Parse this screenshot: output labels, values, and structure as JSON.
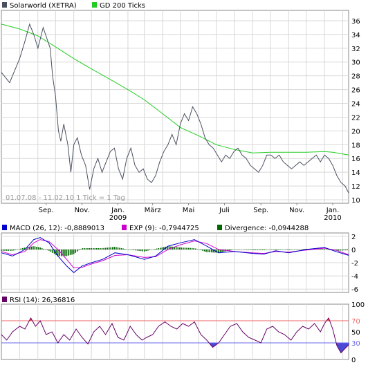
{
  "colors": {
    "price": "#4a5060",
    "gd200": "#22cc22",
    "macd": "#0000cc",
    "exp": "#cc00cc",
    "divergence": "#006600",
    "rsi": "#660066",
    "rsi_high_fill": "#ff3b3b",
    "rsi_low_fill": "#4b4bd6",
    "rsi_70_line": "#ee6666",
    "rsi_30_line": "#6666ee",
    "grid": "#d8d8d8",
    "panel_bg": "#ffffff"
  },
  "legend": {
    "price_label": "Solarworld (XETRA)",
    "gd200_label": "GD 200 Ticks",
    "macd_label": "MACD (26, 12): -0,8889013",
    "exp_label": "EXP (9): -0,7944725",
    "divergence_label": "Divergence: -0,0944288",
    "rsi_label": "RSI (14): 26,36816"
  },
  "footnote": "01.07.08 - 11.02.10   1 Tick = 1 Tag",
  "x_ticks": [
    {
      "label": "Sep.",
      "year": ""
    },
    {
      "label": "Nov.",
      "year": ""
    },
    {
      "label": "Jan.",
      "year": "2009"
    },
    {
      "label": "März",
      "year": ""
    },
    {
      "label": "Mai",
      "year": ""
    },
    {
      "label": "Juli",
      "year": ""
    },
    {
      "label": "Sep.",
      "year": ""
    },
    {
      "label": "Nov.",
      "year": ""
    },
    {
      "label": "Jan.",
      "year": "2010"
    }
  ],
  "chart_data": [
    {
      "type": "line",
      "title": "",
      "x_range": [
        "2008-07-01",
        "2010-02-11"
      ],
      "y_ticks": [
        "10",
        "12",
        "14",
        "16",
        "18",
        "20",
        "22",
        "24",
        "26",
        "28",
        "30",
        "32",
        "34",
        "36"
      ],
      "ylim": [
        9.5,
        37.5
      ],
      "grid": true,
      "legend_position": "top-left",
      "series": [
        {
          "name": "Solarworld (XETRA)",
          "points": [
            [
              "2008-07-01",
              28.5
            ],
            [
              "2008-07-15",
              27.0
            ],
            [
              "2008-08-01",
              30.5
            ],
            [
              "2008-08-10",
              33.0
            ],
            [
              "2008-08-18",
              35.5
            ],
            [
              "2008-08-25",
              34.0
            ],
            [
              "2008-09-01",
              32.0
            ],
            [
              "2008-09-10",
              35.0
            ],
            [
              "2008-09-16",
              33.5
            ],
            [
              "2008-09-22",
              32.0
            ],
            [
              "2008-09-26",
              28.0
            ],
            [
              "2008-10-01",
              25.0
            ],
            [
              "2008-10-06",
              20.0
            ],
            [
              "2008-10-10",
              18.5
            ],
            [
              "2008-10-15",
              21.0
            ],
            [
              "2008-10-22",
              18.0
            ],
            [
              "2008-10-27",
              14.0
            ],
            [
              "2008-11-01",
              18.0
            ],
            [
              "2008-11-07",
              19.0
            ],
            [
              "2008-11-14",
              16.5
            ],
            [
              "2008-11-21",
              15.0
            ],
            [
              "2008-11-28",
              11.5
            ],
            [
              "2008-12-05",
              14.5
            ],
            [
              "2008-12-12",
              16.0
            ],
            [
              "2008-12-19",
              14.0
            ],
            [
              "2009-01-02",
              17.0
            ],
            [
              "2009-01-09",
              17.5
            ],
            [
              "2009-01-16",
              14.5
            ],
            [
              "2009-01-23",
              13.0
            ],
            [
              "2009-01-30",
              16.0
            ],
            [
              "2009-02-06",
              17.5
            ],
            [
              "2009-02-13",
              15.0
            ],
            [
              "2009-02-20",
              14.0
            ],
            [
              "2009-02-27",
              14.5
            ],
            [
              "2009-03-06",
              13.0
            ],
            [
              "2009-03-13",
              12.5
            ],
            [
              "2009-03-20",
              13.5
            ],
            [
              "2009-03-27",
              15.5
            ],
            [
              "2009-04-03",
              17.0
            ],
            [
              "2009-04-10",
              18.0
            ],
            [
              "2009-04-17",
              19.5
            ],
            [
              "2009-04-24",
              18.0
            ],
            [
              "2009-05-01",
              21.0
            ],
            [
              "2009-05-08",
              22.5
            ],
            [
              "2009-05-15",
              21.5
            ],
            [
              "2009-05-22",
              23.5
            ],
            [
              "2009-05-29",
              22.5
            ],
            [
              "2009-06-05",
              21.0
            ],
            [
              "2009-06-12",
              19.0
            ],
            [
              "2009-06-19",
              18.0
            ],
            [
              "2009-06-26",
              17.5
            ],
            [
              "2009-07-03",
              16.5
            ],
            [
              "2009-07-10",
              15.5
            ],
            [
              "2009-07-17",
              16.5
            ],
            [
              "2009-07-24",
              16.0
            ],
            [
              "2009-07-31",
              17.0
            ],
            [
              "2009-08-07",
              17.5
            ],
            [
              "2009-08-14",
              16.5
            ],
            [
              "2009-08-21",
              16.0
            ],
            [
              "2009-08-28",
              15.0
            ],
            [
              "2009-09-04",
              14.5
            ],
            [
              "2009-09-11",
              14.0
            ],
            [
              "2009-09-18",
              15.0
            ],
            [
              "2009-09-25",
              16.5
            ],
            [
              "2009-10-02",
              16.5
            ],
            [
              "2009-10-09",
              16.0
            ],
            [
              "2009-10-16",
              16.5
            ],
            [
              "2009-10-23",
              15.5
            ],
            [
              "2009-10-30",
              15.0
            ],
            [
              "2009-11-06",
              14.5
            ],
            [
              "2009-11-13",
              15.0
            ],
            [
              "2009-11-20",
              15.5
            ],
            [
              "2009-11-27",
              15.0
            ],
            [
              "2009-12-04",
              15.5
            ],
            [
              "2009-12-11",
              16.0
            ],
            [
              "2009-12-18",
              16.5
            ],
            [
              "2009-12-25",
              15.5
            ],
            [
              "2010-01-01",
              16.5
            ],
            [
              "2010-01-08",
              16.0
            ],
            [
              "2010-01-15",
              15.0
            ],
            [
              "2010-01-22",
              13.5
            ],
            [
              "2010-01-29",
              12.5
            ],
            [
              "2010-02-05",
              12.0
            ],
            [
              "2010-02-11",
              11.0
            ]
          ]
        },
        {
          "name": "GD 200 Ticks",
          "points": [
            [
              "2008-07-01",
              35.5
            ],
            [
              "2008-08-01",
              34.8
            ],
            [
              "2008-09-01",
              33.8
            ],
            [
              "2008-10-01",
              32.2
            ],
            [
              "2008-11-01",
              30.5
            ],
            [
              "2008-12-01",
              29.0
            ],
            [
              "2009-01-01",
              27.5
            ],
            [
              "2009-02-01",
              26.0
            ],
            [
              "2009-03-01",
              24.5
            ],
            [
              "2009-04-01",
              22.5
            ],
            [
              "2009-05-01",
              20.5
            ],
            [
              "2009-06-01",
              19.3
            ],
            [
              "2009-07-01",
              18.0
            ],
            [
              "2009-08-01",
              17.3
            ],
            [
              "2009-09-01",
              16.8
            ],
            [
              "2009-10-01",
              16.9
            ],
            [
              "2009-11-01",
              16.9
            ],
            [
              "2009-12-01",
              16.9
            ],
            [
              "2010-01-01",
              17.0
            ],
            [
              "2010-01-15",
              16.9
            ],
            [
              "2010-02-11",
              16.5
            ]
          ]
        }
      ]
    },
    {
      "type": "line",
      "title": "",
      "y_ticks": [
        "2",
        "0",
        "-2",
        "-4",
        "-6"
      ],
      "ylim": [
        -6.5,
        2.5
      ],
      "grid": true,
      "series": [
        {
          "name": "MACD",
          "points": [
            [
              "2008-07-01",
              -0.5
            ],
            [
              "2008-07-20",
              -1.0
            ],
            [
              "2008-08-10",
              0.0
            ],
            [
              "2008-08-25",
              1.5
            ],
            [
              "2008-09-05",
              1.8
            ],
            [
              "2008-09-20",
              1.0
            ],
            [
              "2008-10-05",
              -1.0
            ],
            [
              "2008-10-20",
              -2.5
            ],
            [
              "2008-11-01",
              -3.5
            ],
            [
              "2008-11-15",
              -2.5
            ],
            [
              "2008-12-01",
              -2.0
            ],
            [
              "2008-12-20",
              -1.5
            ],
            [
              "2009-01-10",
              -0.5
            ],
            [
              "2009-02-01",
              -0.8
            ],
            [
              "2009-03-01",
              -1.5
            ],
            [
              "2009-03-20",
              -1.0
            ],
            [
              "2009-04-10",
              0.5
            ],
            [
              "2009-05-01",
              1.0
            ],
            [
              "2009-05-25",
              1.5
            ],
            [
              "2009-06-15",
              0.5
            ],
            [
              "2009-07-05",
              -0.5
            ],
            [
              "2009-08-01",
              -0.3
            ],
            [
              "2009-09-01",
              -0.6
            ],
            [
              "2009-09-20",
              -0.7
            ],
            [
              "2009-10-10",
              -0.2
            ],
            [
              "2009-11-01",
              -0.5
            ],
            [
              "2009-12-01",
              0.0
            ],
            [
              "2010-01-01",
              0.3
            ],
            [
              "2010-01-20",
              -0.3
            ],
            [
              "2010-02-11",
              -0.89
            ]
          ]
        },
        {
          "name": "EXP (9)",
          "points": [
            [
              "2008-07-01",
              -0.3
            ],
            [
              "2008-07-20",
              -0.8
            ],
            [
              "2008-08-10",
              -0.3
            ],
            [
              "2008-08-25",
              1.0
            ],
            [
              "2008-09-05",
              1.5
            ],
            [
              "2008-09-20",
              1.2
            ],
            [
              "2008-10-05",
              0.0
            ],
            [
              "2008-10-20",
              -1.5
            ],
            [
              "2008-11-01",
              -2.8
            ],
            [
              "2008-11-15",
              -2.7
            ],
            [
              "2008-12-01",
              -2.2
            ],
            [
              "2008-12-20",
              -1.7
            ],
            [
              "2009-01-10",
              -0.9
            ],
            [
              "2009-02-01",
              -0.8
            ],
            [
              "2009-03-01",
              -1.2
            ],
            [
              "2009-03-20",
              -1.1
            ],
            [
              "2009-04-10",
              0.0
            ],
            [
              "2009-05-01",
              0.7
            ],
            [
              "2009-05-25",
              1.3
            ],
            [
              "2009-06-15",
              0.9
            ],
            [
              "2009-07-05",
              0.0
            ],
            [
              "2009-08-01",
              -0.3
            ],
            [
              "2009-09-01",
              -0.5
            ],
            [
              "2009-09-20",
              -0.6
            ],
            [
              "2009-10-10",
              -0.3
            ],
            [
              "2009-11-01",
              -0.4
            ],
            [
              "2009-12-01",
              -0.1
            ],
            [
              "2010-01-01",
              0.2
            ],
            [
              "2010-01-20",
              -0.1
            ],
            [
              "2010-02-11",
              -0.79
            ]
          ]
        }
      ]
    },
    {
      "type": "line",
      "title": "",
      "y_ticks": [
        "100",
        "70",
        "50",
        "30",
        "0"
      ],
      "ylim": [
        0,
        100
      ],
      "grid": true,
      "reference_lines": [
        70,
        30
      ],
      "series": [
        {
          "name": "RSI (14)",
          "points": [
            [
              "2008-07-01",
              45
            ],
            [
              "2008-07-10",
              35
            ],
            [
              "2008-07-20",
              50
            ],
            [
              "2008-08-01",
              60
            ],
            [
              "2008-08-10",
              55
            ],
            [
              "2008-08-20",
              75
            ],
            [
              "2008-08-28",
              60
            ],
            [
              "2008-09-05",
              70
            ],
            [
              "2008-09-15",
              45
            ],
            [
              "2008-09-25",
              50
            ],
            [
              "2008-10-05",
              30
            ],
            [
              "2008-10-15",
              45
            ],
            [
              "2008-10-25",
              35
            ],
            [
              "2008-11-05",
              55
            ],
            [
              "2008-11-15",
              40
            ],
            [
              "2008-11-25",
              28
            ],
            [
              "2008-12-05",
              50
            ],
            [
              "2008-12-15",
              60
            ],
            [
              "2008-12-25",
              45
            ],
            [
              "2009-01-05",
              65
            ],
            [
              "2009-01-15",
              40
            ],
            [
              "2009-01-25",
              35
            ],
            [
              "2009-02-05",
              60
            ],
            [
              "2009-02-15",
              45
            ],
            [
              "2009-02-25",
              35
            ],
            [
              "2009-03-05",
              40
            ],
            [
              "2009-03-15",
              45
            ],
            [
              "2009-03-25",
              60
            ],
            [
              "2009-04-05",
              68
            ],
            [
              "2009-04-15",
              60
            ],
            [
              "2009-04-25",
              55
            ],
            [
              "2009-05-05",
              65
            ],
            [
              "2009-05-15",
              60
            ],
            [
              "2009-05-25",
              68
            ],
            [
              "2009-06-05",
              45
            ],
            [
              "2009-06-15",
              35
            ],
            [
              "2009-06-25",
              22
            ],
            [
              "2009-07-05",
              30
            ],
            [
              "2009-07-15",
              45
            ],
            [
              "2009-07-25",
              60
            ],
            [
              "2009-08-05",
              65
            ],
            [
              "2009-08-15",
              50
            ],
            [
              "2009-08-25",
              40
            ],
            [
              "2009-09-05",
              35
            ],
            [
              "2009-09-15",
              30
            ],
            [
              "2009-09-25",
              55
            ],
            [
              "2009-10-05",
              60
            ],
            [
              "2009-10-15",
              50
            ],
            [
              "2009-10-25",
              45
            ],
            [
              "2009-11-05",
              35
            ],
            [
              "2009-11-15",
              50
            ],
            [
              "2009-11-25",
              60
            ],
            [
              "2009-12-05",
              55
            ],
            [
              "2009-12-15",
              65
            ],
            [
              "2009-12-25",
              50
            ],
            [
              "2010-01-01",
              65
            ],
            [
              "2010-01-08",
              75
            ],
            [
              "2010-01-15",
              55
            ],
            [
              "2010-01-22",
              25
            ],
            [
              "2010-01-29",
              12
            ],
            [
              "2010-02-05",
              20
            ],
            [
              "2010-02-11",
              26.37
            ]
          ]
        }
      ]
    }
  ]
}
